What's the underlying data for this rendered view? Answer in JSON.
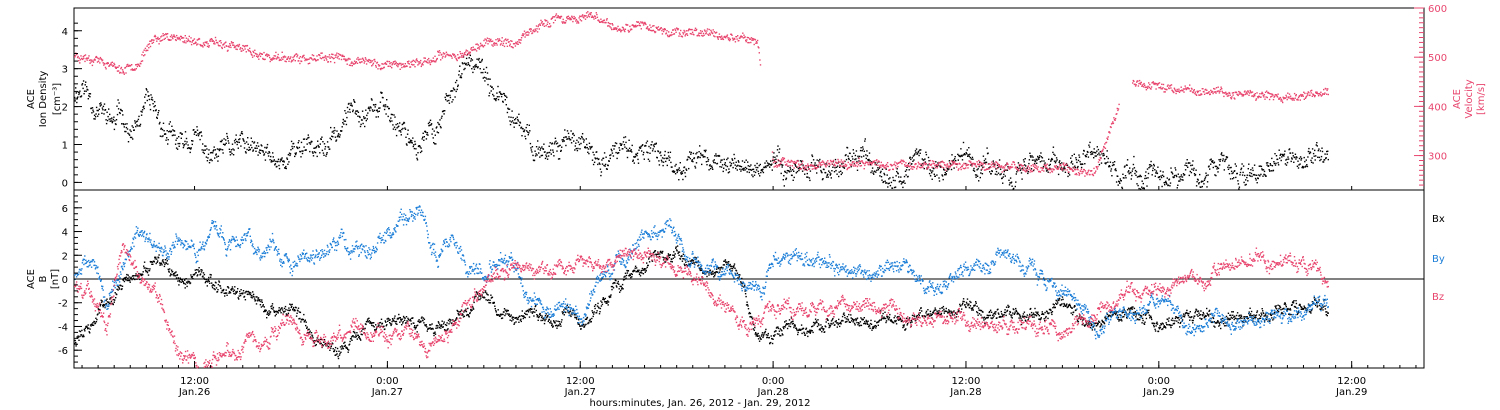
{
  "colors": {
    "black": "#000000",
    "pink": "#e8456e",
    "blue": "#1e7fd8"
  },
  "x_axis": {
    "title": "hours:minutes, Jan. 26, 2012 - Jan. 29, 2012",
    "xlim_hours": [
      4.5,
      88.5
    ],
    "ticks": [
      {
        "hour": 12,
        "time": "12:00",
        "day": "Jan.26"
      },
      {
        "hour": 24,
        "time": "0:00",
        "day": "Jan.27"
      },
      {
        "hour": 36,
        "time": "12:00",
        "day": "Jan.27"
      },
      {
        "hour": 48,
        "time": "0:00",
        "day": "Jan.28"
      },
      {
        "hour": 60,
        "time": "12:00",
        "day": "Jan.28"
      },
      {
        "hour": 72,
        "time": "0:00",
        "day": "Jan.29"
      },
      {
        "hour": 84,
        "time": "12:00",
        "day": "Jan.29"
      }
    ]
  },
  "chart_data": [
    {
      "type": "scatter",
      "panel": "top",
      "ylabel": [
        "ACE",
        "Ion Density",
        "[cm⁻³]"
      ],
      "ylim": [
        -0.2,
        4.6
      ],
      "yticks": [
        "0",
        "1",
        "2",
        "3",
        "4"
      ],
      "y2label": [
        "ACE",
        "Velocity",
        "[km/s]"
      ],
      "y2lim": [
        230,
        600
      ],
      "y2ticks": [
        "300",
        "400",
        "500",
        "600"
      ],
      "series": [
        {
          "axis": "left",
          "color": "#000000",
          "x_hours": [
            4.5,
            5,
            6,
            7,
            7.5,
            8,
            9,
            10,
            11,
            12,
            13,
            14,
            15,
            16,
            17,
            18,
            19,
            20,
            21,
            22,
            23,
            24,
            25,
            26,
            27,
            28,
            29,
            30,
            31,
            32,
            33,
            34,
            35,
            36,
            37,
            38,
            39,
            40,
            41,
            42,
            43,
            44,
            45,
            46,
            47,
            48,
            50,
            52,
            54,
            56,
            58,
            60,
            62,
            64,
            66,
            68,
            70,
            72,
            74,
            76,
            78,
            80,
            81,
            82,
            82.5
          ],
          "y": [
            2.4,
            2.6,
            2.0,
            1.5,
            1.9,
            1.2,
            1.9,
            1.4,
            0.9,
            1.2,
            0.6,
            0.8,
            0.9,
            0.7,
            0.6,
            0.8,
            1.2,
            0.8,
            1.4,
            2.1,
            2.2,
            1.8,
            1.5,
            1.0,
            1.4,
            2.6,
            3.1,
            2.7,
            2.2,
            1.4,
            1.0,
            0.9,
            1.3,
            0.9,
            0.5,
            0.7,
            0.9,
            0.6,
            0.8,
            0.5,
            0.7,
            0.6,
            0.5,
            0.4,
            0.5,
            0.45,
            0.5,
            0.35,
            0.6,
            0.4,
            0.5,
            0.6,
            0.4,
            0.55,
            0.45,
            0.5,
            0.3,
            0.3,
            0.35,
            0.3,
            0.4,
            0.45,
            0.5,
            0.7,
            0.8
          ]
        },
        {
          "axis": "right",
          "color": "#e8456e",
          "x_hours": [
            4.5,
            6,
            7.5,
            8.5,
            9.5,
            10.5,
            12,
            13,
            14,
            15,
            16,
            17,
            18,
            19,
            20,
            21,
            22,
            23,
            24,
            25,
            26,
            27,
            28,
            29,
            30,
            31,
            32,
            33,
            34,
            35,
            36,
            37,
            38,
            39,
            40,
            41,
            42,
            43,
            44,
            45,
            46,
            47,
            48,
            50,
            52,
            54,
            56,
            58,
            60,
            62,
            64,
            66,
            68,
            70,
            72,
            74,
            76,
            78,
            80,
            82,
            82.5
          ],
          "y": [
            505,
            500,
            475,
            495,
            540,
            545,
            535,
            530,
            525,
            515,
            505,
            500,
            498,
            495,
            495,
            498,
            493,
            490,
            485,
            488,
            492,
            498,
            505,
            515,
            530,
            535,
            530,
            550,
            575,
            580,
            582,
            578,
            560,
            555,
            565,
            560,
            555,
            550,
            548,
            545,
            540,
            535,
            285,
            285,
            287,
            285,
            284,
            285,
            283,
            282,
            275,
            270,
            265,
            455,
            440,
            435,
            430,
            425,
            420,
            425,
            430
          ]
        }
      ]
    },
    {
      "type": "scatter",
      "panel": "bottom",
      "ylabel": [
        "ACE",
        "B",
        "[nT]"
      ],
      "ylim": [
        -7.5,
        7.5
      ],
      "yticks": [
        "-6",
        "-4",
        "-2",
        "0",
        "2",
        "4",
        "6"
      ],
      "legend": [
        "Bx",
        "By",
        "Bz"
      ],
      "legend_placement": "right",
      "series": [
        {
          "name": "Bx",
          "color": "#000000",
          "x_hours": [
            4.5,
            5.5,
            6.5,
            7.5,
            8.5,
            10,
            11,
            12,
            13,
            14,
            15,
            16,
            17,
            18,
            19,
            20,
            21,
            22,
            23,
            24,
            25,
            26,
            27,
            28,
            29,
            30,
            31,
            32,
            33,
            34,
            35,
            36,
            37,
            38,
            39,
            40,
            41,
            42,
            43,
            44,
            45,
            46,
            47,
            48,
            50,
            52,
            54,
            56,
            58,
            60,
            62,
            64,
            66,
            68,
            70,
            72,
            74,
            76,
            78,
            80,
            82,
            82.5
          ],
          "y": [
            -5,
            -4,
            -1.5,
            -0.5,
            0.5,
            1,
            -0.5,
            0.5,
            0,
            -0.5,
            -1.5,
            -2,
            -3,
            -2.5,
            -4,
            -5,
            -5.5,
            -5,
            -4,
            -3.5,
            -3,
            -3.5,
            -4,
            -3.5,
            -2.5,
            -1,
            -2,
            -3.5,
            -3,
            -3.5,
            -3,
            -3.5,
            -2.5,
            -1,
            0.5,
            1.5,
            2.5,
            2,
            1,
            0.5,
            1.5,
            0,
            -5,
            -4.5,
            -4,
            -3.5,
            -3.5,
            -3.5,
            -3,
            -2.5,
            -3,
            -3,
            -2.5,
            -3.5,
            -3,
            -3.5,
            -3,
            -3.5,
            -3,
            -2.5,
            -2,
            -2.5
          ]
        },
        {
          "name": "By",
          "color": "#1e7fd8",
          "x_hours": [
            4.5,
            5.5,
            6.5,
            7.5,
            8.5,
            10,
            11,
            12,
            13,
            14,
            15,
            16,
            17,
            18,
            19,
            20,
            21,
            22,
            23,
            24,
            25,
            26,
            27,
            28,
            29,
            30,
            31,
            32,
            33,
            34,
            35,
            36,
            37,
            38,
            39,
            40,
            41,
            42,
            43,
            44,
            45,
            46,
            47,
            48,
            50,
            52,
            54,
            56,
            58,
            60,
            62,
            64,
            66,
            68,
            70,
            72,
            74,
            76,
            78,
            80,
            82,
            82.5
          ],
          "y": [
            0.5,
            1.5,
            -1.5,
            1,
            3.5,
            2,
            3.5,
            2.5,
            4,
            3,
            4,
            2.5,
            3,
            1,
            2,
            3,
            3.5,
            2.5,
            2,
            3.5,
            5.5,
            5,
            2.5,
            4,
            1,
            0.5,
            2,
            1,
            -2,
            -3,
            -2,
            -3,
            -1,
            1,
            2,
            3.5,
            4,
            3,
            2,
            0.5,
            1.5,
            0.5,
            -1,
            1.5,
            2,
            1,
            0.5,
            1,
            0,
            1,
            1.5,
            0.5,
            -1,
            -4,
            -3,
            -2,
            -4,
            -3.5,
            -3,
            -3,
            -2,
            -2.5
          ]
        },
        {
          "name": "Bz",
          "color": "#e8456e",
          "x_hours": [
            4.5,
            5.5,
            6.5,
            7.5,
            8.5,
            10,
            11,
            12,
            13,
            14,
            15,
            16,
            17,
            18,
            19,
            20,
            21,
            22,
            23,
            24,
            25,
            26,
            27,
            28,
            29,
            30,
            31,
            32,
            33,
            34,
            35,
            36,
            37,
            38,
            39,
            40,
            41,
            42,
            43,
            44,
            45,
            46,
            47,
            48,
            50,
            52,
            54,
            56,
            58,
            60,
            62,
            64,
            66,
            68,
            70,
            72,
            74,
            76,
            78,
            80,
            82,
            82.5
          ],
          "y": [
            -0.5,
            -1,
            -3.5,
            3.5,
            0.5,
            -2,
            -6.5,
            -6.8,
            -6.5,
            -6,
            -5.5,
            -5,
            -4.5,
            -4,
            -5,
            -4.5,
            -5,
            -4,
            -4.5,
            -5,
            -4,
            -4.5,
            -5,
            -4,
            -2,
            0,
            0.5,
            1,
            0.5,
            1,
            0.5,
            1.5,
            1,
            1.5,
            2,
            2.5,
            2,
            1.5,
            0,
            -1,
            -2,
            -3,
            -4,
            -3,
            -2,
            -2.5,
            -2,
            -3,
            -3,
            -3.5,
            -3.5,
            -4,
            -4.5,
            -3,
            -1,
            -0.5,
            0,
            1,
            1.5,
            1,
            0.5,
            -1
          ]
        }
      ]
    }
  ]
}
